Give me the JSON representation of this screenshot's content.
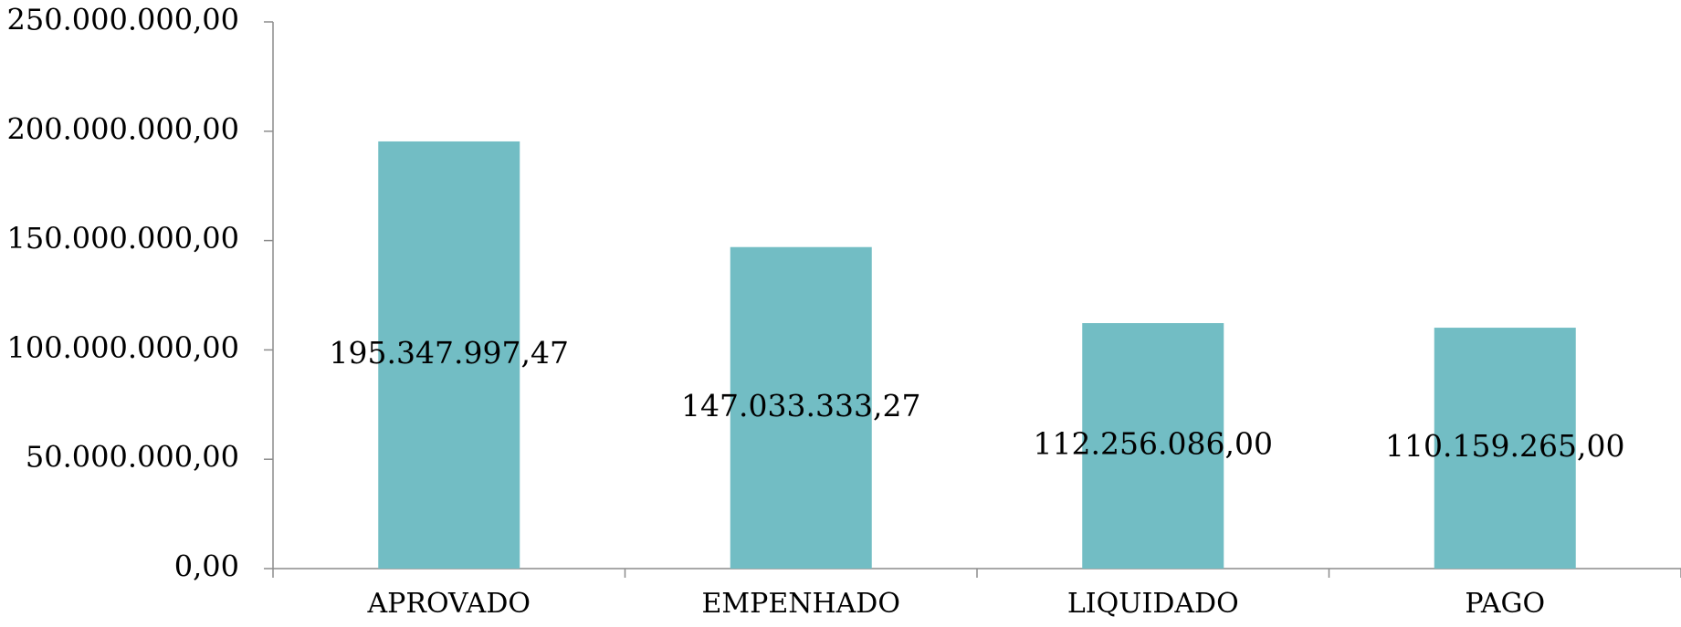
{
  "chart_data": {
    "type": "bar",
    "categories": [
      "APROVADO",
      "EMPENHADO",
      "LIQUIDADO",
      "PAGO"
    ],
    "values": [
      195347997.47,
      147033333.27,
      112256086.0,
      110159265.0
    ],
    "data_labels": [
      "195.347.997,47",
      "147.033.333,27",
      "112.256.086,00",
      "110.159.265,00"
    ],
    "ylim": [
      0,
      250000000
    ],
    "yticks": [
      0,
      50000000,
      100000000,
      150000000,
      200000000,
      250000000
    ],
    "ytick_labels": [
      "0,00",
      "50.000.000,00",
      "100.000.000,00",
      "150.000.000,00",
      "200.000.000,00",
      "250.000.000,00"
    ],
    "title": "",
    "xlabel": "",
    "ylabel": "",
    "grid": false,
    "legend": "none",
    "bar_color": "#72bdc4"
  }
}
